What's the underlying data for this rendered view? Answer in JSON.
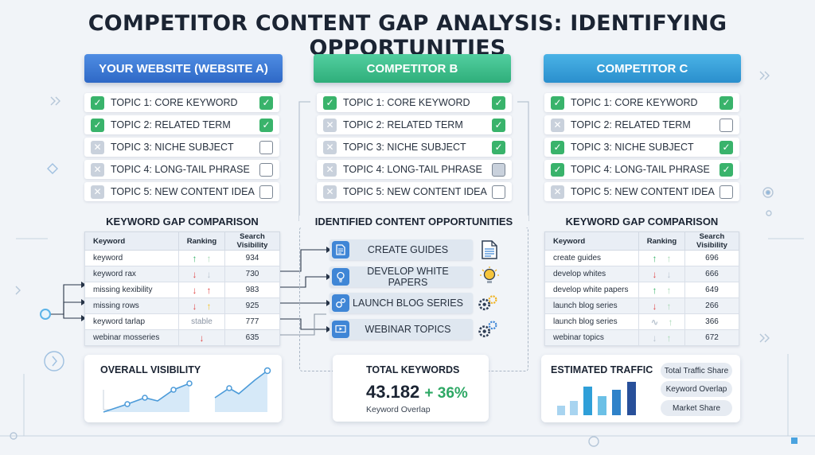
{
  "title": "COMPETITOR CONTENT GAP ANALYSIS: IDENTIFYING OPPORTUNITIES",
  "columns": [
    {
      "header": "YOUR WEBSITE (WEBSITE A)",
      "topics": [
        {
          "label": "TOPIC 1: CORE KEYWORD",
          "left": "check",
          "right": "check"
        },
        {
          "label": "TOPIC 2: RELATED TERM",
          "left": "check",
          "right": "check"
        },
        {
          "label": "TOPIC 3: NICHE SUBJECT",
          "left": "cross",
          "right": "empty"
        },
        {
          "label": "TOPIC 4: LONG-TAIL PHRASE",
          "left": "cross",
          "right": "empty"
        },
        {
          "label": "TOPIC 5: NEW CONTENT IDEA",
          "left": "cross",
          "right": "empty"
        }
      ]
    },
    {
      "header": "COMPETITOR B",
      "topics": [
        {
          "label": "TOPIC 1: CORE KEYWORD",
          "left": "check",
          "right": "check"
        },
        {
          "label": "TOPIC 2: RELATED TERM",
          "left": "cross",
          "right": "check"
        },
        {
          "label": "TOPIC 3: NICHE SUBJECT",
          "left": "cross",
          "right": "check"
        },
        {
          "label": "TOPIC 4: LONG-TAIL PHRASE",
          "left": "cross",
          "right": "grey"
        },
        {
          "label": "TOPIC 5: NEW CONTENT IDEA",
          "left": "cross",
          "right": "empty"
        }
      ]
    },
    {
      "header": "COMPETITOR C",
      "topics": [
        {
          "label": "TOPIC 1: CORE KEYWORD",
          "left": "check",
          "right": "check"
        },
        {
          "label": "TOPIC 2: RELATED TERM",
          "left": "cross",
          "right": "empty"
        },
        {
          "label": "TOPIC 3: NICHE SUBJECT",
          "left": "check",
          "right": "check"
        },
        {
          "label": "TOPIC 4: LONG-TAIL PHRASE",
          "left": "check",
          "right": "check"
        },
        {
          "label": "TOPIC 5: NEW CONTENT IDEA",
          "left": "cross",
          "right": "empty"
        }
      ]
    }
  ],
  "gap_a": {
    "title": "KEYWORD GAP COMPARISON",
    "headers": [
      "Keyword",
      "Ranking",
      "Search Visibility"
    ],
    "rows": [
      {
        "keyword": "keyword",
        "rank1": "up",
        "rank2": "up-l",
        "value": "934"
      },
      {
        "keyword": "keyword rax",
        "rank1": "dn",
        "rank2": "dn-l",
        "value": "730"
      },
      {
        "keyword": "missing kexibility",
        "rank1": "dn",
        "rank2": "up-r",
        "value": "983"
      },
      {
        "keyword": "missing rows",
        "rank1": "dn",
        "rank2": "up-y",
        "value": "925"
      },
      {
        "keyword": "keyword tarlap",
        "rank_text": "stable",
        "value": "777"
      },
      {
        "keyword": "webinar mosseries",
        "rank1": "dn",
        "value": "635"
      }
    ]
  },
  "opportunities": {
    "title": "IDENTIFIED CONTENT OPPORTUNITIES",
    "items": [
      {
        "label": "CREATE GUIDES",
        "icon": "document-icon"
      },
      {
        "label": "DEVELOP WHITE PAPERS",
        "icon": "lightbulb-icon"
      },
      {
        "label": "LAUNCH BLOG SERIES",
        "icon": "gears-icon"
      },
      {
        "label": "WEBINAR TOPICS",
        "icon": "video-icon"
      }
    ]
  },
  "gap_c": {
    "title": "KEYWORD GAP COMPARISON",
    "headers": [
      "Keyword",
      "Ranking",
      "Search Visibility"
    ],
    "rows": [
      {
        "keyword": "create guides",
        "rank1": "up",
        "rank2": "up-l",
        "value": "696"
      },
      {
        "keyword": "develop whites",
        "rank1": "dn",
        "rank2": "dn-l",
        "value": "666"
      },
      {
        "keyword": "develop white papers",
        "rank1": "up",
        "rank2": "up-l",
        "value": "649"
      },
      {
        "keyword": "launch blog series",
        "rank1": "dn",
        "rank2": "up-l",
        "value": "266"
      },
      {
        "keyword": "launch blog series",
        "rank1": "wave",
        "rank2": "up-l",
        "value": "366"
      },
      {
        "keyword": "webinar topics",
        "rank1": "dn-l",
        "rank2": "up-l",
        "value": "672"
      }
    ]
  },
  "overall_visibility": {
    "title": "OVERALL VISIBILITY"
  },
  "total_keywords": {
    "title": "TOTAL KEYWORDS",
    "value": "43.182",
    "change": "+ 36%",
    "caption": "Keyword Overlap"
  },
  "estimated_traffic": {
    "title": "ESTIMATED TRAFFIC",
    "pills": [
      "Total Traffic Share",
      "Keyword Overlap",
      "Market Share"
    ]
  },
  "colors": {
    "header_a": "#2e68c6",
    "header_b": "#2fae7a",
    "header_c": "#2a8fcd",
    "check": "#39b36b",
    "down": "#e04848"
  }
}
